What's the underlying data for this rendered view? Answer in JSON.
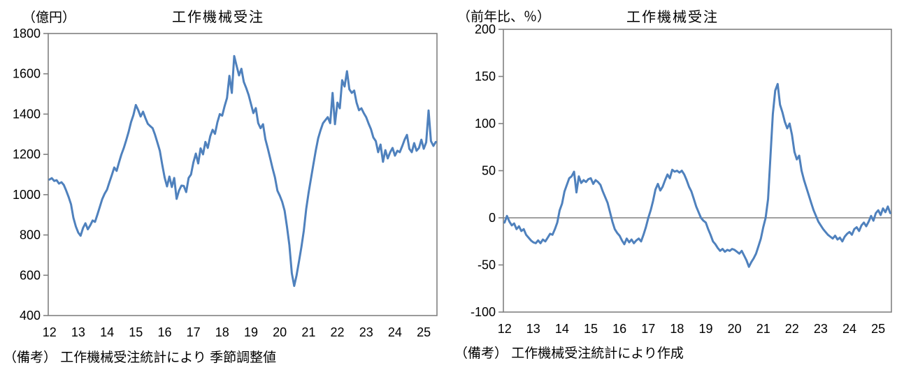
{
  "chart_data": [
    {
      "type": "line",
      "title": "工作機械受注",
      "unit_label": "（億円）",
      "note": "（備考） 工作機械受注統計により 季節調整値",
      "x_start": "2012-01",
      "x_end": "2025-06",
      "x_tick_labels": [
        "12",
        "13",
        "14",
        "15",
        "16",
        "17",
        "18",
        "19",
        "20",
        "21",
        "22",
        "23",
        "24",
        "25"
      ],
      "ylim": [
        400,
        1800
      ],
      "y_ticks": [
        1800,
        1600,
        1400,
        1200,
        1000,
        800,
        600,
        400
      ],
      "grid": false,
      "zero_line": false,
      "legend": "none",
      "line_color": "#4F81BD",
      "axis_color": "#808080",
      "series": [
        {
          "name": "工作機械受注（季節調整値）",
          "values": [
            1075,
            1082,
            1068,
            1072,
            1055,
            1062,
            1048,
            1020,
            988,
            952,
            885,
            842,
            812,
            796,
            835,
            858,
            828,
            848,
            872,
            865,
            902,
            940,
            978,
            1005,
            1025,
            1062,
            1098,
            1135,
            1118,
            1160,
            1200,
            1232,
            1270,
            1312,
            1360,
            1395,
            1445,
            1420,
            1388,
            1412,
            1380,
            1352,
            1340,
            1330,
            1298,
            1258,
            1218,
            1150,
            1085,
            1041,
            1090,
            1038,
            1083,
            979,
            1020,
            1045,
            1043,
            1013,
            1083,
            1100,
            1160,
            1204,
            1155,
            1230,
            1200,
            1262,
            1232,
            1290,
            1322,
            1302,
            1360,
            1400,
            1392,
            1440,
            1480,
            1590,
            1505,
            1688,
            1640,
            1592,
            1625,
            1560,
            1530,
            1495,
            1450,
            1405,
            1430,
            1355,
            1330,
            1350,
            1275,
            1230,
            1180,
            1130,
            1085,
            1020,
            995,
            965,
            920,
            840,
            750,
            610,
            547,
            600,
            670,
            740,
            820,
            930,
            1010,
            1080,
            1150,
            1220,
            1280,
            1320,
            1355,
            1370,
            1385,
            1355,
            1505,
            1350,
            1457,
            1429,
            1568,
            1537,
            1613,
            1523,
            1505,
            1517,
            1457,
            1419,
            1429,
            1405,
            1384,
            1353,
            1325,
            1284,
            1266,
            1211,
            1249,
            1163,
            1221,
            1180,
            1211,
            1232,
            1194,
            1218,
            1211,
            1240,
            1273,
            1297,
            1228,
            1211,
            1256,
            1218,
            1232,
            1273,
            1228,
            1260,
            1418,
            1266,
            1242,
            1262
          ]
        }
      ]
    },
    {
      "type": "line",
      "title": "工作機械受注",
      "unit_label": "（前年比、％）",
      "note": "（備考） 工作機械受注統計により作成",
      "x_start": "2012-01",
      "x_end": "2025-06",
      "x_tick_labels": [
        "12",
        "13",
        "14",
        "15",
        "16",
        "17",
        "18",
        "19",
        "20",
        "21",
        "22",
        "23",
        "24",
        "25"
      ],
      "ylim": [
        -100,
        200
      ],
      "y_ticks": [
        200,
        150,
        100,
        50,
        0,
        -50,
        -100
      ],
      "grid": false,
      "zero_line": true,
      "legend": "none",
      "line_color": "#4F81BD",
      "axis_color": "#808080",
      "series": [
        {
          "name": "工作機械受注（前年比）",
          "values": [
            -5,
            2,
            -4,
            -8,
            -6,
            -12,
            -9,
            -14,
            -12,
            -18,
            -21,
            -24,
            -26,
            -27,
            -24,
            -27,
            -23,
            -25,
            -21,
            -17,
            -18,
            -12,
            -5,
            8,
            15,
            28,
            35,
            42,
            44,
            49,
            27,
            44,
            37,
            40,
            38,
            41,
            42,
            36,
            40,
            38,
            35,
            28,
            22,
            16,
            6,
            -4,
            -12,
            -16,
            -19,
            -24,
            -28,
            -22,
            -26,
            -23,
            -27,
            -24,
            -22,
            -25,
            -18,
            -10,
            0,
            8,
            18,
            30,
            36,
            29,
            33,
            40,
            46,
            42,
            51,
            49,
            50,
            48,
            50,
            46,
            40,
            33,
            28,
            20,
            12,
            6,
            0,
            -3,
            -5,
            -12,
            -18,
            -25,
            -28,
            -32,
            -35,
            -33,
            -36,
            -34,
            -35,
            -33,
            -34,
            -36,
            -38,
            -35,
            -40,
            -45,
            -52,
            -47,
            -43,
            -38,
            -30,
            -22,
            -10,
            0,
            20,
            65,
            110,
            135,
            142,
            120,
            112,
            102,
            95,
            100,
            88,
            70,
            62,
            66,
            50,
            40,
            32,
            24,
            16,
            8,
            2,
            -4,
            -8,
            -12,
            -15,
            -18,
            -20,
            -22,
            -19,
            -23,
            -21,
            -25,
            -20,
            -17,
            -15,
            -18,
            -12,
            -10,
            -14,
            -8,
            -5,
            -9,
            -4,
            2,
            -3,
            5,
            8,
            3,
            10,
            6,
            12,
            5
          ]
        }
      ]
    }
  ]
}
